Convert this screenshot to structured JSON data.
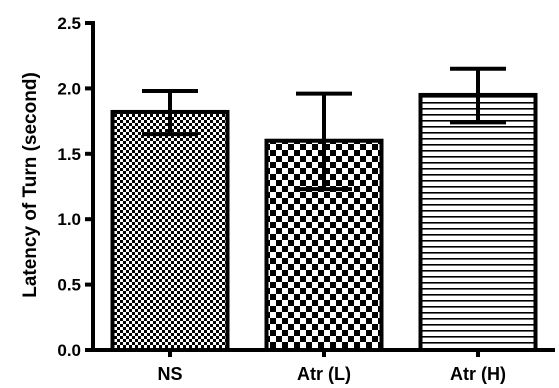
{
  "chart_data": {
    "type": "bar",
    "title": "",
    "xlabel": "",
    "ylabel": "Latency of Turn (second)",
    "ylim": [
      0,
      2.5
    ],
    "yticks": [
      "0.0",
      "0.5",
      "1.0",
      "1.5",
      "2.0",
      "2.5"
    ],
    "categories": [
      "NS",
      "Atr (L)",
      "Atr (H)"
    ],
    "values": [
      1.82,
      1.6,
      1.95
    ],
    "error_upper": [
      1.98,
      1.96,
      2.15
    ],
    "error_lower": [
      1.65,
      1.23,
      1.74
    ],
    "patterns": [
      "fine-checker",
      "coarse-checker",
      "horizontal-stripes"
    ],
    "grid": false,
    "legend": "none"
  }
}
